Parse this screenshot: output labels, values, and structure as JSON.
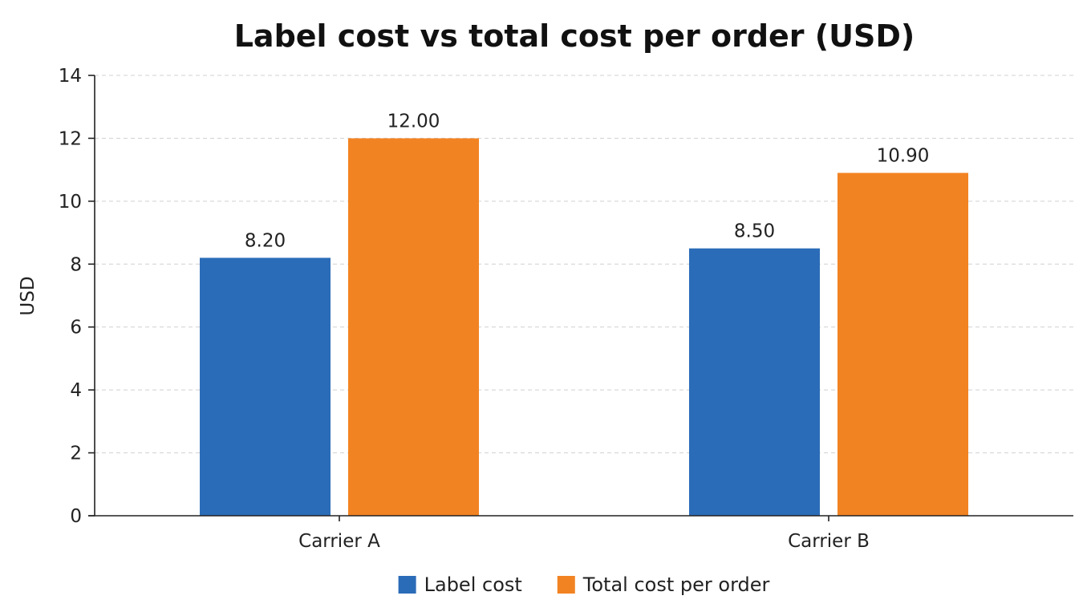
{
  "chart_data": {
    "type": "bar",
    "title": "Label cost vs total cost per order (USD)",
    "xlabel": "",
    "ylabel": "USD",
    "categories": [
      "Carrier A",
      "Carrier B"
    ],
    "series": [
      {
        "name": "Label cost",
        "values": [
          8.2,
          8.5
        ],
        "labels": [
          "8.20",
          "8.50"
        ],
        "color": "#2b6cb8"
      },
      {
        "name": "Total cost per order",
        "values": [
          12.0,
          10.9
        ],
        "labels": [
          "12.00",
          "10.90"
        ],
        "color": "#f28322"
      }
    ],
    "ylim": [
      0,
      14
    ],
    "yticks": [
      0,
      2,
      4,
      6,
      8,
      10,
      12,
      14
    ],
    "ytick_labels": [
      "0",
      "2",
      "4",
      "6",
      "8",
      "10",
      "12",
      "14"
    ],
    "grid": true,
    "legend_position": "bottom-center"
  }
}
